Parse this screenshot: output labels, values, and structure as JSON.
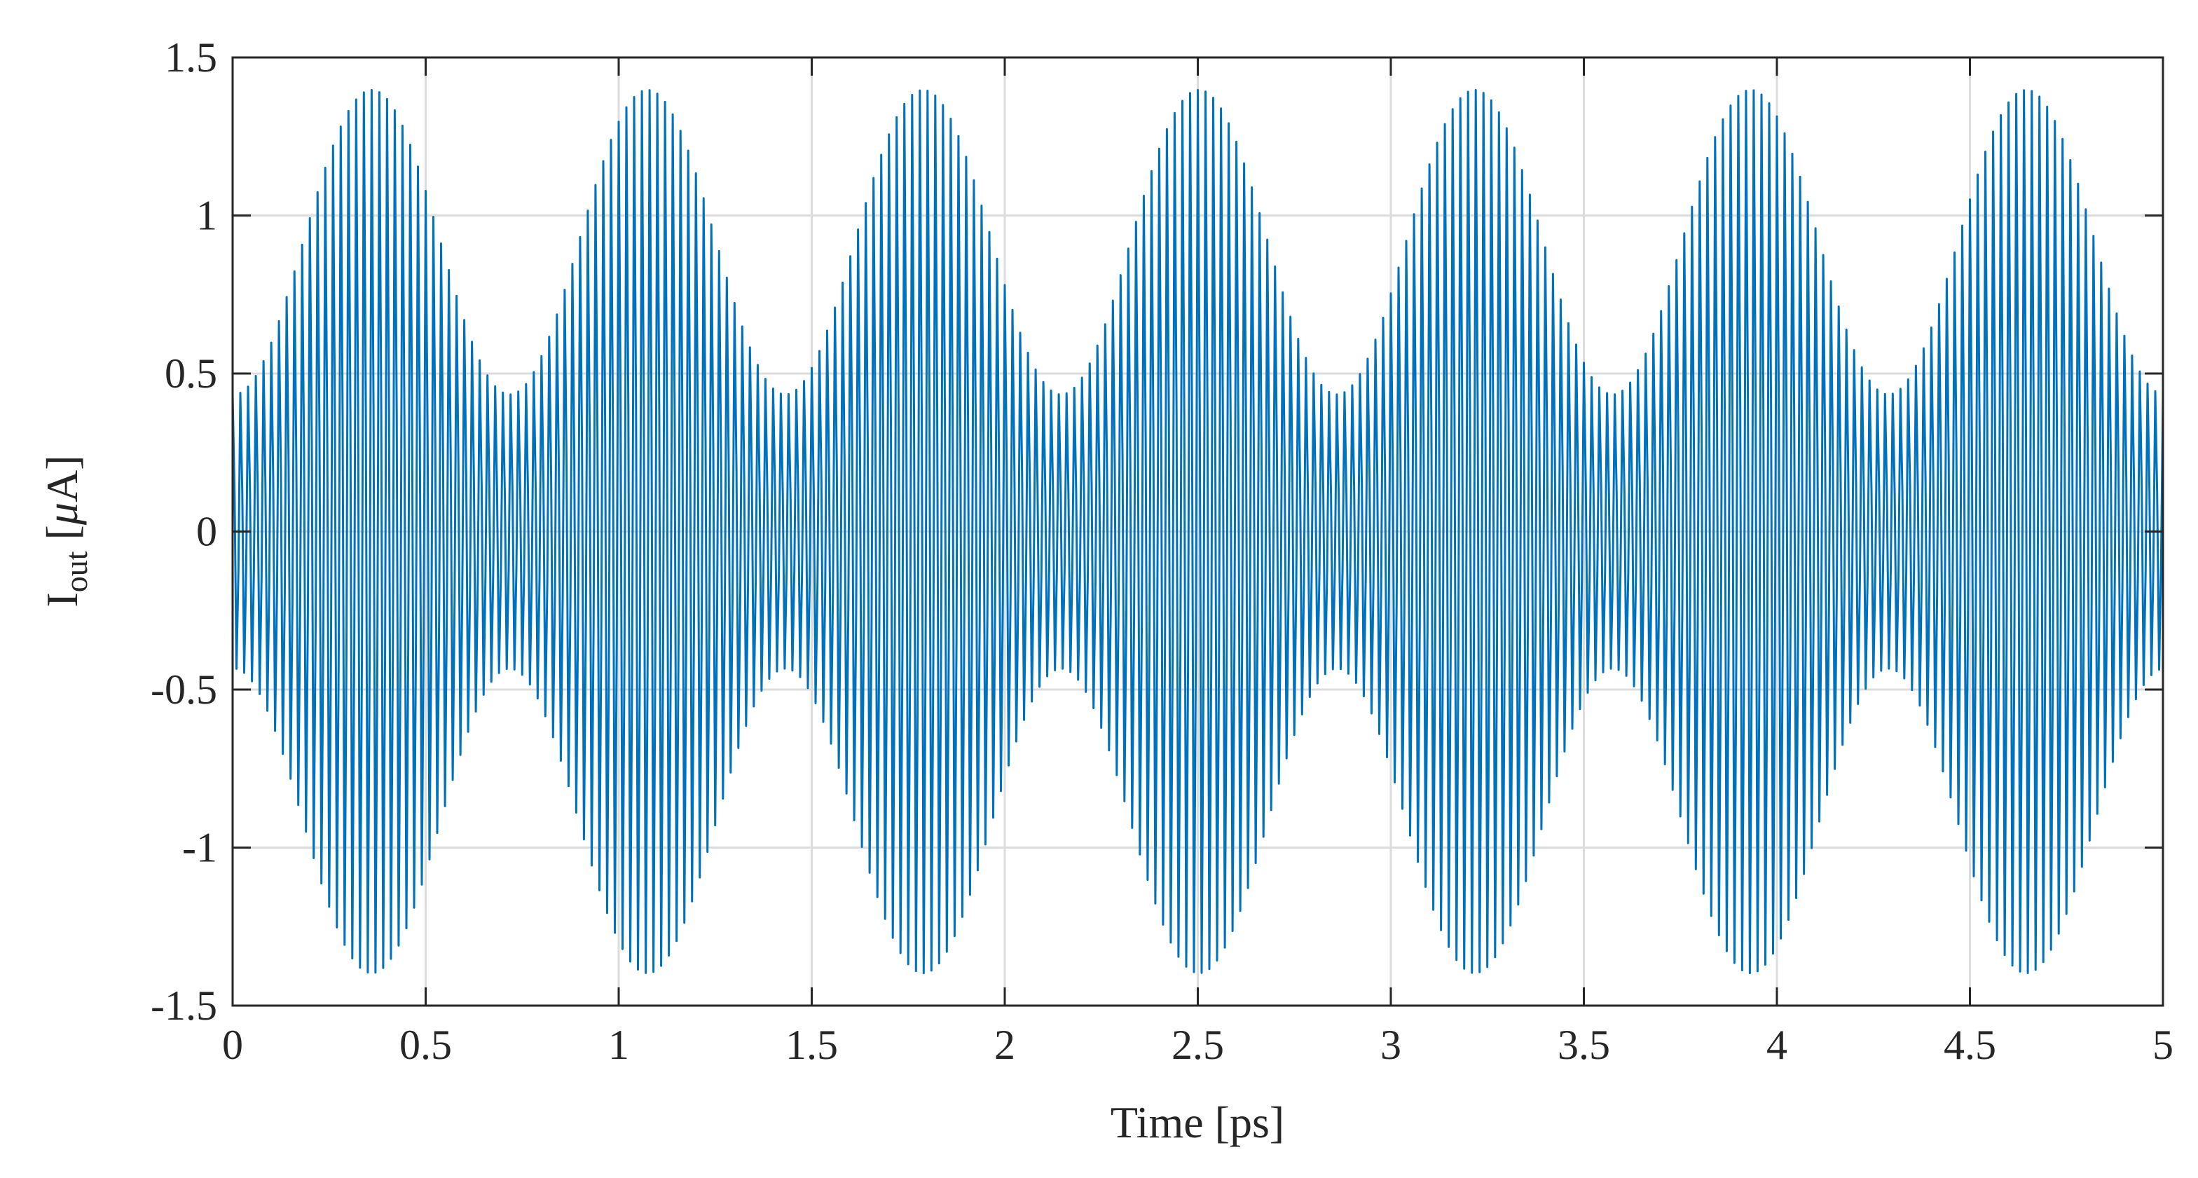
{
  "chart_data": {
    "type": "line",
    "title": "",
    "xlabel": "Time [ps]",
    "ylabel_main": "I",
    "ylabel_sub": "out",
    "ylabel_unit_open": " [",
    "ylabel_mu": "μ",
    "ylabel_unit_close": "A]",
    "xlim": [
      0,
      5
    ],
    "ylim": [
      -1.5,
      1.5
    ],
    "grid": true,
    "legend": "none",
    "xticks": [
      0,
      0.5,
      1,
      1.5,
      2,
      2.5,
      3,
      3.5,
      4,
      4.5,
      5
    ],
    "xtick_labels": [
      "0",
      "0.5",
      "1",
      "1.5",
      "2",
      "2.5",
      "3",
      "3.5",
      "4",
      "4.5",
      "5"
    ],
    "yticks": [
      -1.5,
      -1,
      -0.5,
      0,
      0.5,
      1,
      1.5
    ],
    "ytick_labels": [
      "-1.5",
      "-1",
      "-0.5",
      "0",
      "0.5",
      "1",
      "1.5"
    ],
    "series": [
      {
        "name": "I_out",
        "color": "#0072BD",
        "description_values": {
          "carrier_frequency_THz": 50,
          "envelope_frequency_THz": 1.4,
          "amplitude_range_uA": [
            0.45,
            1.45
          ],
          "x_range_ps": [
            0,
            5
          ],
          "sample_step_ps": 0.005
        }
      }
    ]
  }
}
